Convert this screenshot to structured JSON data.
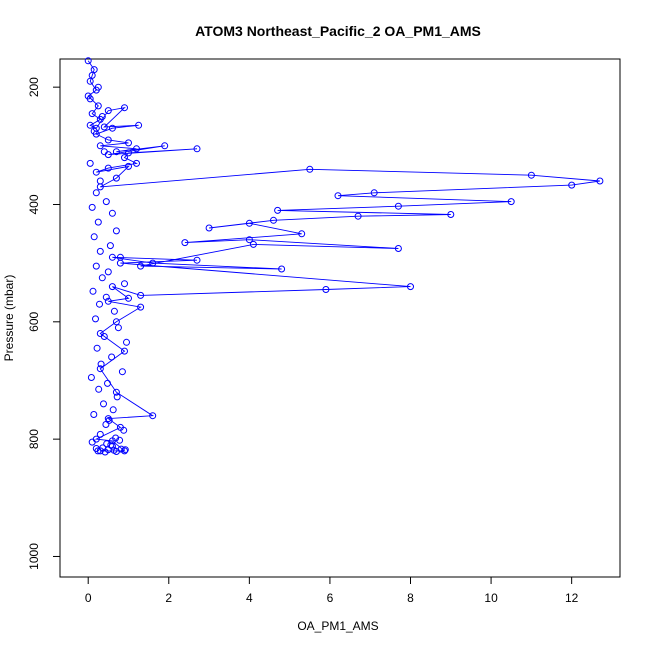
{
  "chart_data": {
    "type": "scatter",
    "title": "ATOM3 Northeast_Pacific_2 OA_PM1_AMS",
    "xlabel": "OA_PM1_AMS",
    "ylabel": "Pressure (mbar)",
    "xlim": [
      -0.7,
      13.2
    ],
    "ylim": [
      1035,
      152
    ],
    "y_reversed": true,
    "x_ticks": [
      0,
      2,
      4,
      6,
      8,
      10,
      12
    ],
    "y_ticks": [
      200,
      400,
      600,
      800,
      1000
    ],
    "grid": false,
    "legend": "none",
    "color": "#0000ff",
    "series": [
      {
        "style": "line-with-open-circles",
        "x": [
          0.0,
          0.15,
          0.05,
          0.2,
          0.0,
          0.25,
          0.1,
          0.3,
          0.05,
          0.2,
          0.5,
          0.9,
          0.4,
          1.25,
          0.6,
          0.2,
          0.5,
          1.0,
          0.3,
          1.2,
          0.7,
          1.9,
          0.5,
          2.7,
          1.0,
          0.9,
          1.2,
          0.5,
          0.2,
          1.0,
          0.7,
          0.3,
          5.5,
          11.0,
          12.7,
          12.0,
          7.1,
          6.2,
          10.5,
          7.7,
          4.7,
          9.0,
          6.7,
          4.6,
          3.0,
          4.0,
          5.3,
          2.4,
          4.0,
          7.7,
          4.1,
          1.3,
          4.8,
          1.6,
          0.6,
          2.7,
          0.8,
          8.0,
          5.9,
          1.3,
          0.6,
          1.0,
          0.5,
          1.3,
          0.7,
          0.3,
          0.9,
          0.3,
          0.7,
          1.6,
          0.5,
          0.8,
          0.2,
          0.6,
          0.9,
          0.3
        ],
        "y": [
          155,
          170,
          190,
          205,
          215,
          232,
          245,
          255,
          265,
          270,
          240,
          235,
          268,
          265,
          270,
          280,
          290,
          295,
          300,
          305,
          310,
          300,
          315,
          305,
          312,
          320,
          330,
          338,
          345,
          335,
          355,
          370,
          340,
          350,
          360,
          367,
          380,
          385,
          395,
          403,
          410,
          417,
          420,
          427,
          440,
          432,
          450,
          465,
          460,
          475,
          468,
          505,
          510,
          500,
          490,
          495,
          500,
          540,
          545,
          555,
          540,
          560,
          565,
          575,
          600,
          620,
          650,
          680,
          720,
          760,
          765,
          780,
          800,
          803,
          820,
          820
        ]
      }
    ],
    "scatter_x": [
      0.1,
      0.25,
      0.05,
      0.35,
      0.15,
      0.4,
      0.05,
      0.3,
      0.2,
      0.45,
      0.1,
      0.6,
      0.25,
      0.7,
      0.15,
      0.55,
      0.3,
      0.8,
      0.2,
      0.5,
      0.35,
      0.9,
      0.12,
      0.45,
      0.28,
      0.65,
      0.18,
      0.75,
      0.4,
      0.95,
      0.22,
      0.58,
      0.32,
      0.85,
      0.08,
      0.48,
      0.26,
      0.72,
      0.38,
      0.62,
      0.14,
      0.52,
      0.44,
      0.88,
      0.3,
      0.68,
      0.1,
      0.56,
      0.36,
      0.92,
      0.42,
      0.7,
      0.24,
      0.64,
      0.5,
      0.82,
      0.2,
      0.6,
      0.46,
      0.78
    ],
    "scatter_y": [
      180,
      200,
      220,
      250,
      275,
      310,
      330,
      360,
      380,
      395,
      405,
      415,
      430,
      445,
      455,
      470,
      480,
      490,
      505,
      515,
      525,
      535,
      548,
      558,
      570,
      582,
      595,
      610,
      625,
      635,
      645,
      660,
      672,
      685,
      695,
      705,
      715,
      728,
      740,
      750,
      758,
      768,
      775,
      785,
      792,
      798,
      805,
      810,
      815,
      818,
      822,
      821,
      820,
      819,
      818,
      817,
      816,
      812,
      808,
      802
    ]
  }
}
